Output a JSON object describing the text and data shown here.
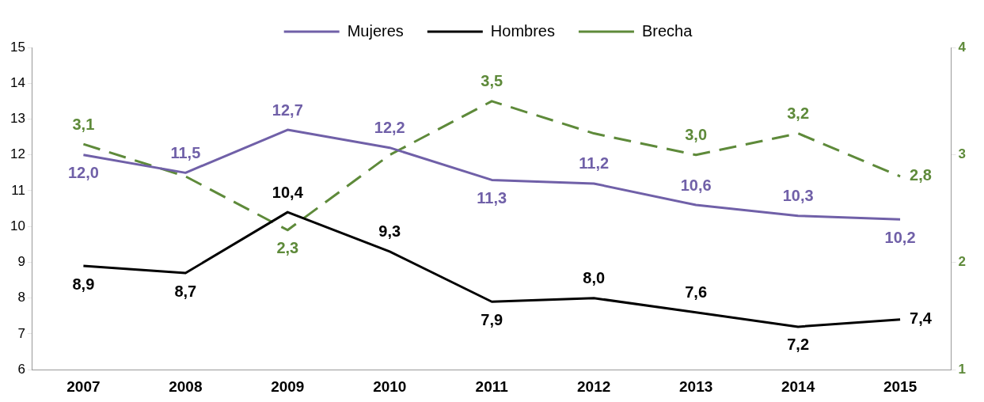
{
  "chart_data": {
    "type": "line",
    "categories": [
      "2007",
      "2008",
      "2009",
      "2010",
      "2011",
      "2012",
      "2013",
      "2014",
      "2015"
    ],
    "series": [
      {
        "name": "Mujeres",
        "color": "#7060a8",
        "values": [
          12.0,
          11.5,
          12.7,
          12.2,
          11.3,
          11.2,
          10.6,
          10.3,
          10.2
        ],
        "value_labels": [
          "12,0",
          "11,5",
          "12,7",
          "12,2",
          "11,3",
          "11,2",
          "10,6",
          "10,3",
          "10,2"
        ]
      },
      {
        "name": "Hombres",
        "color": "#000000",
        "values": [
          8.9,
          8.7,
          10.4,
          9.3,
          7.9,
          8.0,
          7.6,
          7.2,
          7.4
        ],
        "value_labels": [
          "8,9",
          "8,7",
          "10,4",
          "9,3",
          "7,9",
          "8,0",
          "7,6",
          "7,2",
          "7,4"
        ]
      },
      {
        "name": "Brecha",
        "color": "#5e8a3a",
        "axis": "y2",
        "line_style": "dashed",
        "values": [
          3.1,
          2.8,
          2.3,
          3.0,
          3.5,
          3.2,
          3.0,
          3.2,
          2.8
        ],
        "value_labels": [
          "3,1",
          null,
          "2,3",
          null,
          "3,5",
          null,
          "3,0",
          "3,2",
          "2,8"
        ]
      }
    ],
    "ylim": [
      6,
      15
    ],
    "yticks": [
      6,
      7,
      8,
      9,
      10,
      11,
      12,
      13,
      14,
      15
    ],
    "y2lim": [
      1,
      4
    ],
    "y2ticks": [
      1,
      2,
      3,
      4
    ],
    "grid": false,
    "legend": "top",
    "marker": "none",
    "line_style": "solid"
  }
}
